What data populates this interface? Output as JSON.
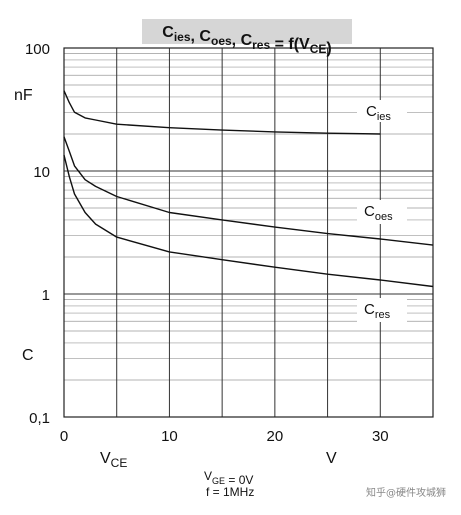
{
  "chart_data": {
    "type": "line",
    "title": {
      "parts": [
        {
          "text": "C",
          "sub": "ies"
        },
        {
          "text": ", C",
          "sub": "oes"
        },
        {
          "text": ", C",
          "sub": "res"
        },
        {
          "text": " = f(V",
          "sub": "CE"
        },
        {
          "text": ")",
          "sub": ""
        }
      ]
    },
    "x_axis": {
      "min": 0,
      "max": 35,
      "ticks": [
        0,
        10,
        20,
        30
      ],
      "tick_labels": [
        "0",
        "10",
        "20",
        "30"
      ],
      "label": "V",
      "label_sub": "CE",
      "unit": "V"
    },
    "y_axis": {
      "scale": "log",
      "min": 0.1,
      "max": 100,
      "ticks": [
        0.1,
        1,
        10,
        100
      ],
      "tick_labels": [
        "0,1",
        "1",
        "10",
        "100"
      ],
      "label": "C",
      "unit": "nF"
    },
    "grid": true,
    "conditions": [
      {
        "text": "V",
        "sub": "GE",
        "rest": " = 0V"
      },
      {
        "text": "f = 1MHz",
        "sub": "",
        "rest": ""
      }
    ],
    "series": [
      {
        "name": "C",
        "name_sub": "ies",
        "x": [
          0,
          0.5,
          1,
          2,
          3,
          5,
          10,
          15,
          20,
          25,
          30
        ],
        "y": [
          45,
          36,
          30,
          27,
          26,
          24,
          22.5,
          21.5,
          20.8,
          20.3,
          20
        ]
      },
      {
        "name": "C",
        "name_sub": "oes",
        "x": [
          0,
          0.5,
          1,
          2,
          3,
          5,
          10,
          15,
          20,
          25,
          30,
          35
        ],
        "y": [
          19,
          14.5,
          11,
          8.5,
          7.5,
          6.2,
          4.6,
          4,
          3.5,
          3.1,
          2.8,
          2.5
        ]
      },
      {
        "name": "C",
        "name_sub": "res",
        "x": [
          0,
          0.5,
          1,
          2,
          3,
          5,
          10,
          15,
          20,
          25,
          30,
          35
        ],
        "y": [
          13.5,
          9,
          6.5,
          4.6,
          3.7,
          2.9,
          2.2,
          1.9,
          1.65,
          1.45,
          1.3,
          1.15
        ]
      }
    ]
  },
  "watermark": "知乎@硬件攻城狮"
}
